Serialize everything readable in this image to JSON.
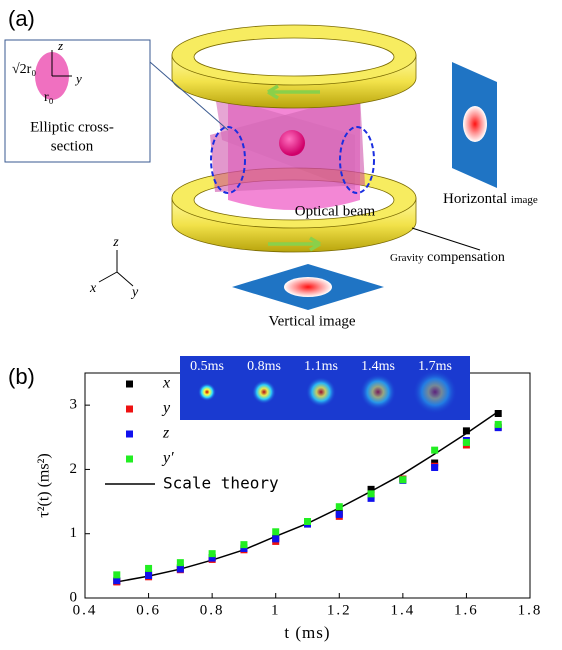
{
  "diagram": {
    "panel_label": "(a)",
    "callout": {
      "axis_z": "z",
      "axis_y": "y",
      "major": "√2r₀",
      "minor": "r₀",
      "caption": [
        "Elliptic cross-",
        "section"
      ]
    },
    "optical_beam": "Optical beam",
    "horizontal_image": [
      "Horizontal",
      "image"
    ],
    "gravity_compensation": [
      "Gravity",
      "compensation"
    ],
    "vertical_image": "Vertical image",
    "axes": {
      "z": "z",
      "x": "x",
      "y": "y"
    }
  },
  "chart_data": {
    "type": "scatter",
    "panel_label": "(b)",
    "xlabel": "t (ms)",
    "ylabel": "τ²(t) (ms²)",
    "x": [
      0.5,
      0.6,
      0.7,
      0.8,
      0.9,
      1.0,
      1.1,
      1.2,
      1.3,
      1.4,
      1.5,
      1.6,
      1.7
    ],
    "series": [
      {
        "name": "x",
        "color": "#000000",
        "mode": "markers",
        "values": [
          0.26,
          0.37,
          0.47,
          0.63,
          0.78,
          0.93,
          1.18,
          1.32,
          1.69,
          1.85,
          2.1,
          2.6,
          2.87
        ]
      },
      {
        "name": "y",
        "color": "#ee1111",
        "mode": "markers",
        "values": [
          0.25,
          0.33,
          0.44,
          0.6,
          0.75,
          0.88,
          1.15,
          1.27,
          1.6,
          1.85,
          2.05,
          2.38,
          2.66
        ]
      },
      {
        "name": "z",
        "color": "#1111ee",
        "mode": "markers",
        "values": [
          0.27,
          0.35,
          0.45,
          0.62,
          0.77,
          0.92,
          1.15,
          1.3,
          1.55,
          1.83,
          2.03,
          2.45,
          2.65
        ]
      },
      {
        "name": "y′",
        "color": "#22ee22",
        "mode": "markers",
        "values": [
          0.36,
          0.46,
          0.55,
          0.69,
          0.83,
          1.03,
          1.19,
          1.42,
          1.62,
          1.84,
          2.3,
          2.42,
          2.7
        ]
      },
      {
        "name": "Scale theory",
        "color": "#000000",
        "mode": "line",
        "values": [
          0.25,
          0.34,
          0.45,
          0.59,
          0.75,
          0.96,
          1.16,
          1.4,
          1.66,
          1.93,
          2.24,
          2.56,
          2.9
        ]
      }
    ],
    "xlim": [
      0.4,
      1.8
    ],
    "xticks": [
      0.4,
      0.6,
      0.8,
      1.0,
      1.2,
      1.4,
      1.6,
      1.8
    ],
    "ylim": [
      0,
      3.5
    ],
    "yticks": [
      0,
      1,
      2,
      3
    ],
    "inset_labels": [
      "0.5ms",
      "0.8ms",
      "1.1ms",
      "1.4ms",
      "1.7ms"
    ]
  }
}
